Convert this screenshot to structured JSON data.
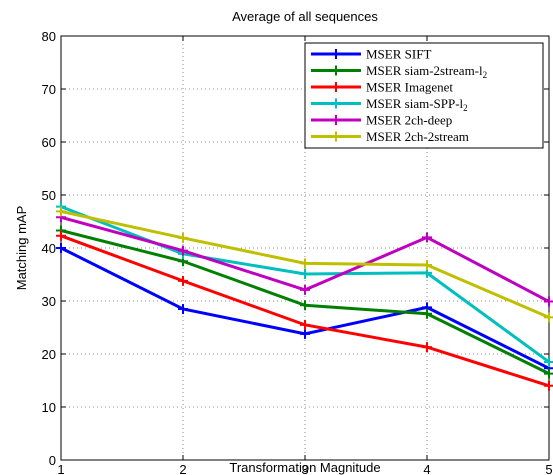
{
  "chart_data": {
    "type": "line",
    "title": "Average of all sequences",
    "xlabel": "Transformation Magnitude",
    "ylabel": "Matching mAP",
    "xlim": [
      1,
      5
    ],
    "ylim": [
      0,
      80
    ],
    "x": [
      1,
      2,
      3,
      4,
      5
    ],
    "x_ticks": [
      "1",
      "2",
      "3",
      "4",
      "5"
    ],
    "y_ticks": [
      "0",
      "10",
      "20",
      "30",
      "40",
      "50",
      "60",
      "70",
      "80"
    ],
    "grid": true,
    "legend_position": "top-right",
    "series": [
      {
        "name": "MSER SIFT",
        "name_sub": "",
        "color": "#0000ff",
        "values": [
          40.0,
          28.5,
          23.8,
          28.8,
          17.3
        ]
      },
      {
        "name": "MSER siam-2stream-l",
        "name_sub": "2",
        "color": "#008000",
        "values": [
          43.3,
          37.5,
          29.2,
          27.6,
          16.3
        ]
      },
      {
        "name": "MSER Imagenet",
        "name_sub": "",
        "color": "#ff0000",
        "values": [
          42.3,
          33.8,
          25.5,
          21.3,
          14.0
        ]
      },
      {
        "name": "MSER siam-SPP-l",
        "name_sub": "2",
        "color": "#00bfbf",
        "values": [
          47.8,
          38.9,
          35.1,
          35.3,
          18.5
        ]
      },
      {
        "name": "MSER 2ch-deep",
        "name_sub": "",
        "color": "#bf00bf",
        "values": [
          45.8,
          39.5,
          32.1,
          42.0,
          29.9
        ]
      },
      {
        "name": "MSER 2ch-2stream",
        "name_sub": "",
        "color": "#bfbf00",
        "values": [
          46.9,
          41.9,
          37.1,
          36.8,
          26.9
        ]
      }
    ]
  }
}
